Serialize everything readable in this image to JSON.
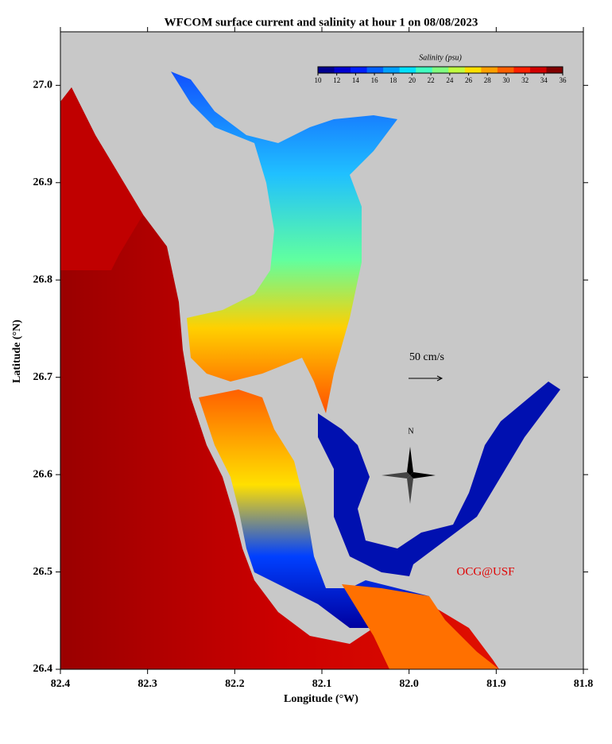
{
  "chart_data": {
    "type": "map",
    "title": "WFCOM surface current and salinity at hour 1 on 08/08/2023",
    "x_label": "Longitude (°W)",
    "y_label": "Latitude (°N)",
    "xlim": [
      82.4,
      81.8
    ],
    "ylim": [
      26.4,
      27.055
    ],
    "xticks": [
      82.4,
      82.3,
      82.2,
      82.1,
      {
        "value": 82,
        "label": "82.0"
      },
      81.9,
      81.8
    ],
    "yticks": [
      26.4,
      26.5,
      26.6,
      26.7,
      26.8,
      26.9,
      {
        "value": 27,
        "label": "27.0"
      }
    ],
    "land_color": "#c8c8c8",
    "colorbar": {
      "title": "Salinity (psu)",
      "lim": [
        10,
        36
      ],
      "ticks": [
        10,
        12,
        14,
        16,
        18,
        20,
        22,
        24,
        26,
        28,
        30,
        32,
        34,
        36
      ],
      "colors": [
        "#00008f",
        "#0000d0",
        "#0020ff",
        "#0060ff",
        "#00a0ff",
        "#00e0ff",
        "#40ffc0",
        "#80ff80",
        "#c0ff40",
        "#ffe000",
        "#ffa000",
        "#ff6000",
        "#ff2000",
        "#d00000",
        "#800000"
      ]
    },
    "annotations": [
      "50 cm/s",
      "N",
      "OCG@USF"
    ]
  }
}
